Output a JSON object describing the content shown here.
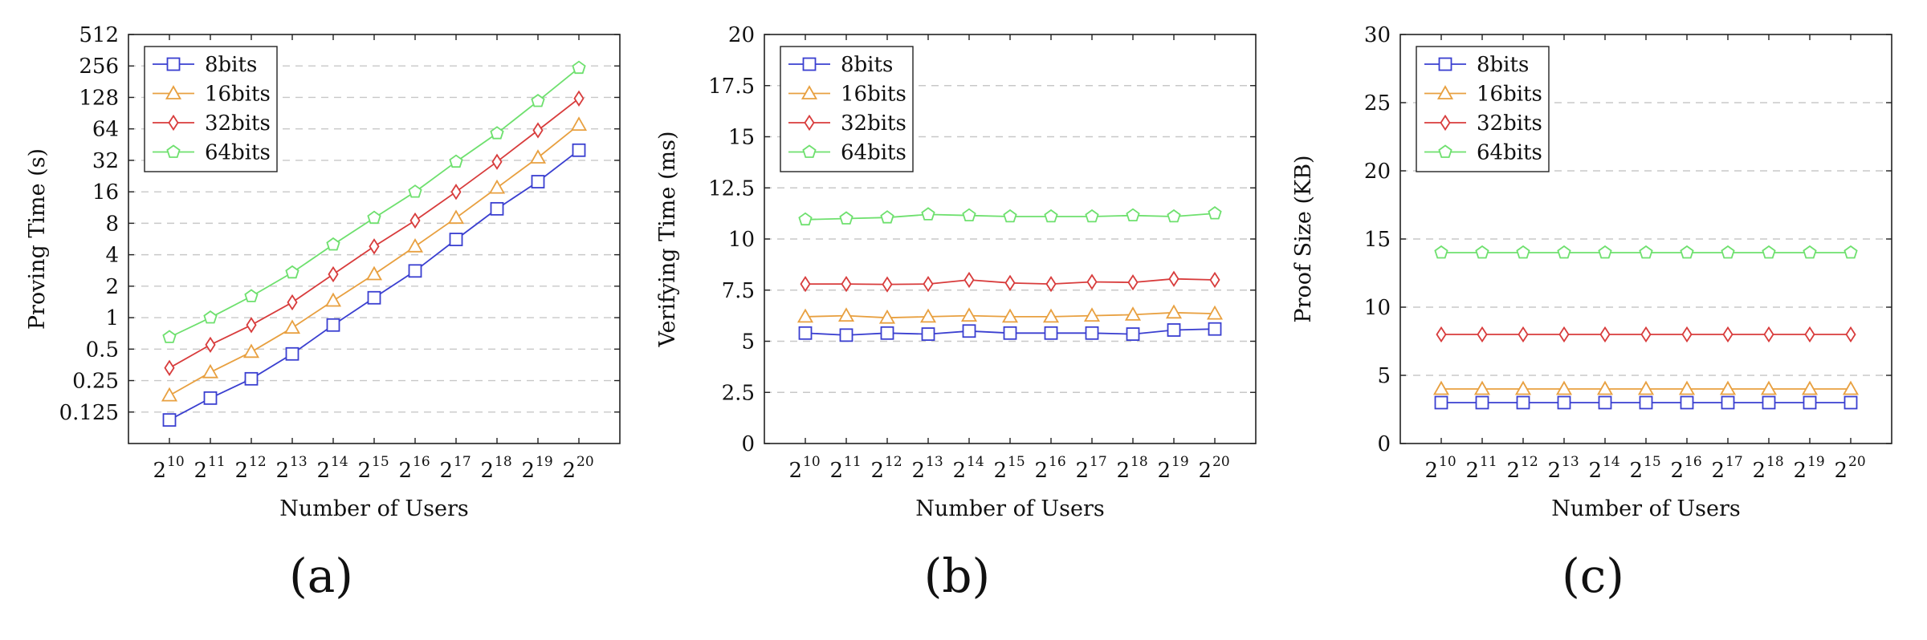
{
  "chart_data": [
    {
      "type": "line",
      "caption": "(a)",
      "xlabel": "Number of Users",
      "ylabel": "Proving Time (s)",
      "yscale": "log2",
      "ylim": [
        0.0625,
        512
      ],
      "yticks": [
        0.125,
        0.25,
        0.5,
        1,
        2,
        4,
        8,
        16,
        32,
        64,
        128,
        256,
        512
      ],
      "ytick_labels": [
        "0.125",
        "0.25",
        "0.5",
        "1",
        "2",
        "4",
        "8",
        "16",
        "32",
        "64",
        "128",
        "256",
        "512"
      ],
      "x_base": "2",
      "x_exponents": [
        "10",
        "11",
        "12",
        "13",
        "14",
        "15",
        "16",
        "17",
        "18",
        "19",
        "20"
      ],
      "grid": "horizontal dashed",
      "legend_position": "top-left",
      "series": [
        {
          "name": "8bits",
          "color": "#3a3fd0",
          "marker": "square",
          "values": [
            0.105,
            0.17,
            0.26,
            0.45,
            0.85,
            1.55,
            2.8,
            5.6,
            11,
            20,
            40
          ]
        },
        {
          "name": "16bits",
          "color": "#e8a040",
          "marker": "triangle",
          "values": [
            0.18,
            0.3,
            0.47,
            0.8,
            1.45,
            2.6,
            4.8,
            9,
            17.5,
            34,
            70
          ]
        },
        {
          "name": "32bits",
          "color": "#d83c3c",
          "marker": "diamond",
          "values": [
            0.33,
            0.55,
            0.85,
            1.4,
            2.6,
            4.8,
            8.5,
            16,
            31,
            62,
            125
          ]
        },
        {
          "name": "64bits",
          "color": "#6ee06e",
          "marker": "pentagon",
          "values": [
            0.65,
            1.0,
            1.6,
            2.7,
            5,
            9,
            16,
            31,
            58,
            118,
            245
          ]
        }
      ]
    },
    {
      "type": "line",
      "caption": "(b)",
      "xlabel": "Number of Users",
      "ylabel": "Verifying Time (ms)",
      "yscale": "linear",
      "ylim": [
        0,
        20
      ],
      "yticks": [
        0,
        2.5,
        5,
        7.5,
        10,
        12.5,
        15,
        17.5,
        20
      ],
      "ytick_labels": [
        "0",
        "2.5",
        "5",
        "7.5",
        "10",
        "12.5",
        "15",
        "17.5",
        "20"
      ],
      "x_base": "2",
      "x_exponents": [
        "10",
        "11",
        "12",
        "13",
        "14",
        "15",
        "16",
        "17",
        "18",
        "19",
        "20"
      ],
      "grid": "horizontal dashed",
      "legend_position": "top-left",
      "series": [
        {
          "name": "8bits",
          "color": "#3a3fd0",
          "marker": "square",
          "values": [
            5.4,
            5.3,
            5.4,
            5.35,
            5.5,
            5.4,
            5.4,
            5.4,
            5.35,
            5.55,
            5.6
          ]
        },
        {
          "name": "16bits",
          "color": "#e8a040",
          "marker": "triangle",
          "values": [
            6.2,
            6.25,
            6.15,
            6.2,
            6.25,
            6.2,
            6.2,
            6.25,
            6.3,
            6.4,
            6.35
          ]
        },
        {
          "name": "32bits",
          "color": "#d83c3c",
          "marker": "diamond",
          "values": [
            7.8,
            7.8,
            7.78,
            7.8,
            8.0,
            7.85,
            7.8,
            7.9,
            7.88,
            8.05,
            8.0
          ]
        },
        {
          "name": "64bits",
          "color": "#6ee06e",
          "marker": "pentagon",
          "values": [
            10.95,
            11.0,
            11.05,
            11.2,
            11.15,
            11.1,
            11.1,
            11.1,
            11.15,
            11.1,
            11.25
          ]
        }
      ]
    },
    {
      "type": "line",
      "caption": "(c)",
      "xlabel": "Number of Users",
      "ylabel": "Proof Size (KB)",
      "yscale": "linear",
      "ylim": [
        0,
        30
      ],
      "yticks": [
        0,
        5,
        10,
        15,
        20,
        25,
        30
      ],
      "ytick_labels": [
        "0",
        "5",
        "10",
        "15",
        "20",
        "25",
        "30"
      ],
      "x_base": "2",
      "x_exponents": [
        "10",
        "11",
        "12",
        "13",
        "14",
        "15",
        "16",
        "17",
        "18",
        "19",
        "20"
      ],
      "grid": "horizontal dashed",
      "legend_position": "top-left",
      "series": [
        {
          "name": "8bits",
          "color": "#3a3fd0",
          "marker": "square",
          "values": [
            3,
            3,
            3,
            3,
            3,
            3,
            3,
            3,
            3,
            3,
            3
          ]
        },
        {
          "name": "16bits",
          "color": "#e8a040",
          "marker": "triangle",
          "values": [
            4,
            4,
            4,
            4,
            4,
            4,
            4,
            4,
            4,
            4,
            4
          ]
        },
        {
          "name": "32bits",
          "color": "#d83c3c",
          "marker": "diamond",
          "values": [
            8,
            8,
            8,
            8,
            8,
            8,
            8,
            8,
            8,
            8,
            8
          ]
        },
        {
          "name": "64bits",
          "color": "#6ee06e",
          "marker": "pentagon",
          "values": [
            14,
            14,
            14,
            14,
            14,
            14,
            14,
            14,
            14,
            14,
            14
          ]
        }
      ]
    }
  ]
}
